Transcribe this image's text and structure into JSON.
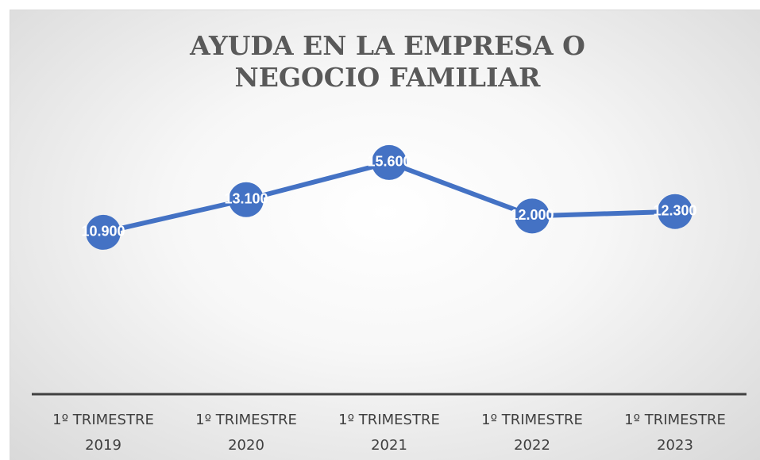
{
  "chart_data": {
    "type": "line",
    "title": "AYUDA EN LA EMPRESA O NEGOCIO FAMILIAR",
    "categories": [
      "1º TRIMESTRE 2019",
      "1º TRIMESTRE 2020",
      "1º TRIMESTRE 2021",
      "1º TRIMESTRE 2022",
      "1º TRIMESTRE 2023"
    ],
    "values": [
      10900,
      13100,
      15600,
      12000,
      12300
    ],
    "value_labels": [
      "10.900",
      "13.100",
      "15.600",
      "12.000",
      "12.300"
    ],
    "color": "#4472c4",
    "ylim": [
      0,
      18000
    ]
  }
}
